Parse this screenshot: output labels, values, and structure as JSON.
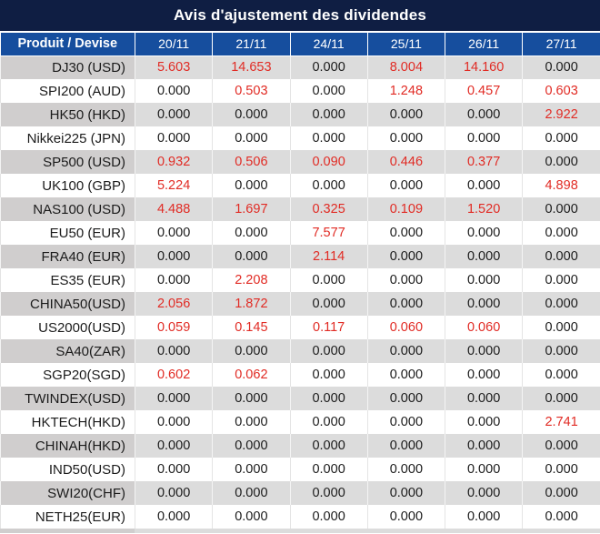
{
  "title": "Avis d'ajustement des dividendes",
  "columns": [
    "Produit / Devise",
    "20/11",
    "21/11",
    "24/11",
    "25/11",
    "26/11",
    "27/11"
  ],
  "rows": [
    {
      "product": "DJ30 (USD)",
      "values": [
        "5.603",
        "14.653",
        "0.000",
        "8.004",
        "14.160",
        "0.000"
      ]
    },
    {
      "product": "SPI200 (AUD)",
      "values": [
        "0.000",
        "0.503",
        "0.000",
        "1.248",
        "0.457",
        "0.603"
      ]
    },
    {
      "product": "HK50 (HKD)",
      "values": [
        "0.000",
        "0.000",
        "0.000",
        "0.000",
        "0.000",
        "2.922"
      ]
    },
    {
      "product": "Nikkei225 (JPN)",
      "values": [
        "0.000",
        "0.000",
        "0.000",
        "0.000",
        "0.000",
        "0.000"
      ]
    },
    {
      "product": "SP500 (USD)",
      "values": [
        "0.932",
        "0.506",
        "0.090",
        "0.446",
        "0.377",
        "0.000"
      ]
    },
    {
      "product": "UK100 (GBP)",
      "values": [
        "5.224",
        "0.000",
        "0.000",
        "0.000",
        "0.000",
        "4.898"
      ]
    },
    {
      "product": "NAS100 (USD)",
      "values": [
        "4.488",
        "1.697",
        "0.325",
        "0.109",
        "1.520",
        "0.000"
      ]
    },
    {
      "product": "EU50 (EUR)",
      "values": [
        "0.000",
        "0.000",
        "7.577",
        "0.000",
        "0.000",
        "0.000"
      ]
    },
    {
      "product": "FRA40 (EUR)",
      "values": [
        "0.000",
        "0.000",
        "2.114",
        "0.000",
        "0.000",
        "0.000"
      ]
    },
    {
      "product": "ES35 (EUR)",
      "values": [
        "0.000",
        "2.208",
        "0.000",
        "0.000",
        "0.000",
        "0.000"
      ]
    },
    {
      "product": "CHINA50(USD)",
      "values": [
        "2.056",
        "1.872",
        "0.000",
        "0.000",
        "0.000",
        "0.000"
      ]
    },
    {
      "product": "US2000(USD)",
      "values": [
        "0.059",
        "0.145",
        "0.117",
        "0.060",
        "0.060",
        "0.000"
      ]
    },
    {
      "product": "SA40(ZAR)",
      "values": [
        "0.000",
        "0.000",
        "0.000",
        "0.000",
        "0.000",
        "0.000"
      ]
    },
    {
      "product": "SGP20(SGD)",
      "values": [
        "0.602",
        "0.062",
        "0.000",
        "0.000",
        "0.000",
        "0.000"
      ]
    },
    {
      "product": "TWINDEX(USD)",
      "values": [
        "0.000",
        "0.000",
        "0.000",
        "0.000",
        "0.000",
        "0.000"
      ]
    },
    {
      "product": "HKTECH(HKD)",
      "values": [
        "0.000",
        "0.000",
        "0.000",
        "0.000",
        "0.000",
        "2.741"
      ]
    },
    {
      "product": "CHINAH(HKD)",
      "values": [
        "0.000",
        "0.000",
        "0.000",
        "0.000",
        "0.000",
        "0.000"
      ]
    },
    {
      "product": "IND50(USD)",
      "values": [
        "0.000",
        "0.000",
        "0.000",
        "0.000",
        "0.000",
        "0.000"
      ]
    },
    {
      "product": "SWI20(CHF)",
      "values": [
        "0.000",
        "0.000",
        "0.000",
        "0.000",
        "0.000",
        "0.000"
      ]
    },
    {
      "product": "NETH25(EUR)",
      "values": [
        "0.000",
        "0.000",
        "0.000",
        "0.000",
        "0.000",
        "0.000"
      ]
    }
  ],
  "colors": {
    "title_bg": "#0F1E43",
    "header_bg": "#164E9E",
    "header_text": "#FFFFFF",
    "row_gray": "#DCDCDC",
    "row_gray_product": "#D0CECE",
    "row_white": "#FFFFFF",
    "value_red": "#E12B24",
    "text_dark": "#1B1B1B"
  }
}
